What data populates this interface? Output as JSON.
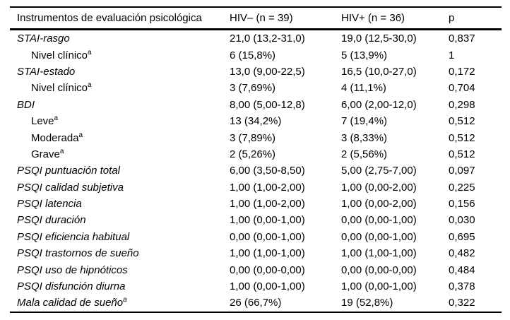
{
  "table": {
    "columns": [
      {
        "label": "Instrumentos de evaluación psicológica"
      },
      {
        "label": "HIV– (n = 39)"
      },
      {
        "label": "HIV+ (n = 36)"
      },
      {
        "label": "p"
      }
    ],
    "rows": [
      {
        "label": "STAI-rasgo",
        "italic": true,
        "indent": false,
        "sup": "",
        "hiv_neg": "21,0 (13,2-31,0)",
        "hiv_pos": "19,0 (12,5-30,0)",
        "p": "0,837"
      },
      {
        "label": "Nivel clínico",
        "italic": false,
        "indent": true,
        "sup": "a",
        "hiv_neg": "6 (15,8%)",
        "hiv_pos": "5 (13,9%)",
        "p": "1"
      },
      {
        "label": "STAI-estado",
        "italic": true,
        "indent": false,
        "sup": "",
        "hiv_neg": "13,0 (9,00-22,5)",
        "hiv_pos": "16,5 (10,0-27,0)",
        "p": "0,172"
      },
      {
        "label": "Nivel clínico",
        "italic": false,
        "indent": true,
        "sup": "a",
        "hiv_neg": "3 (7,69%)",
        "hiv_pos": "4 (11,1%)",
        "p": "0,704"
      },
      {
        "label": "BDI",
        "italic": true,
        "indent": false,
        "sup": "",
        "hiv_neg": "8,00 (5,00-12,8)",
        "hiv_pos": "6,00 (2,00-12,0)",
        "p": "0,298"
      },
      {
        "label": "Leve",
        "italic": false,
        "indent": true,
        "sup": "a",
        "hiv_neg": "13 (34,2%)",
        "hiv_pos": "7 (19,4%)",
        "p": "0,512"
      },
      {
        "label": "Moderada",
        "italic": false,
        "indent": true,
        "sup": "a",
        "hiv_neg": "3 (7,89%)",
        "hiv_pos": "3 (8,33%)",
        "p": "0,512"
      },
      {
        "label": "Grave",
        "italic": false,
        "indent": true,
        "sup": "a",
        "hiv_neg": "2 (5,26%)",
        "hiv_pos": "2 (5,56%)",
        "p": "0,512"
      },
      {
        "label": "PSQI puntuación total",
        "italic": true,
        "indent": false,
        "sup": "",
        "hiv_neg": "6,00 (3,50-8,50)",
        "hiv_pos": "5,00 (2,75-7,00)",
        "p": "0,097"
      },
      {
        "label": "PSQI calidad subjetiva",
        "italic": true,
        "indent": false,
        "sup": "",
        "hiv_neg": "1,00 (1,00-2,00)",
        "hiv_pos": "1,00 (0,00-2,00)",
        "p": "0,225"
      },
      {
        "label": "PSQI latencia",
        "italic": true,
        "indent": false,
        "sup": "",
        "hiv_neg": "1,00 (1,00-2,00)",
        "hiv_pos": "1,00 (0,00-2,00)",
        "p": "0,156"
      },
      {
        "label": "PSQI duración",
        "italic": true,
        "indent": false,
        "sup": "",
        "hiv_neg": "1,00 (0,00-1,00)",
        "hiv_pos": "0,00 (0,00-1,00)",
        "p": "0,030"
      },
      {
        "label": "PSQI eficiencia habitual",
        "italic": true,
        "indent": false,
        "sup": "",
        "hiv_neg": "0,00 (0,00-1,00)",
        "hiv_pos": "0,00 (0,00-1,00)",
        "p": "0,695"
      },
      {
        "label": "PSQI trastornos de sueño",
        "italic": true,
        "indent": false,
        "sup": "",
        "hiv_neg": "1,00 (1,00-1,00)",
        "hiv_pos": "1,00 (1,00-1,00)",
        "p": "0,482"
      },
      {
        "label": "PSQI uso de hipnóticos",
        "italic": true,
        "indent": false,
        "sup": "",
        "hiv_neg": "0,00 (0,00-0,00)",
        "hiv_pos": "0,00 (0,00-0,00)",
        "p": "0,484"
      },
      {
        "label": "PSQI disfunción diurna",
        "italic": true,
        "indent": false,
        "sup": "",
        "hiv_neg": "1,00 (0,00-1,00)",
        "hiv_pos": "1,00 (0,00-1,00)",
        "p": "0,378"
      },
      {
        "label": "Mala calidad de sueño",
        "italic": true,
        "indent": false,
        "sup": "a",
        "hiv_neg": "26 (66,7%)",
        "hiv_pos": "19 (52,8%)",
        "p": "0,322"
      }
    ]
  },
  "colors": {
    "text": "#000000",
    "border": "#000000",
    "background": "#ffffff"
  }
}
